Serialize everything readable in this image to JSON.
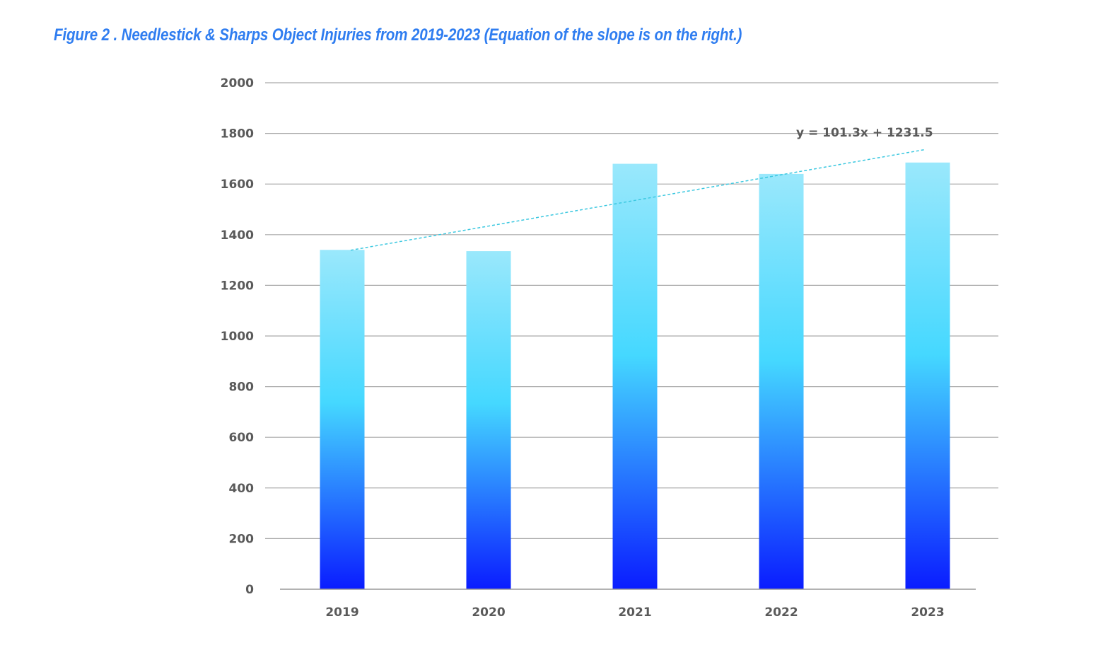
{
  "title": "Figure 2 . Needlestick & Sharps Object Injuries from 2019-2023 (Equation of the slope is on the right.)",
  "chart_data": {
    "type": "bar",
    "title": "Figure 2 . Needlestick & Sharps Object Injuries from 2019-2023 (Equation of the slope is on the right.)",
    "categories": [
      "2019",
      "2020",
      "2021",
      "2022",
      "2023"
    ],
    "values": [
      1340,
      1335,
      1680,
      1640,
      1685
    ],
    "xlabel": "",
    "ylabel": "",
    "ylim": [
      0,
      2000
    ],
    "yticks": [
      0,
      200,
      400,
      600,
      800,
      1000,
      1200,
      1400,
      1600,
      1800,
      2000
    ],
    "grid": true,
    "legend": "none",
    "trendline": {
      "type": "linear",
      "slope": 101.3,
      "intercept": 1231.5,
      "equation": "y = 101.3x + 1231.5",
      "color": "#3cc8e0"
    },
    "colors": {
      "bar_top": "#9ae8fc",
      "bar_mid": "#45d8ff",
      "bar_bottom": "#0a1cff",
      "title": "#2f7df0",
      "gridline": "#aaaaaa",
      "tick_label": "#5a5a5a"
    }
  }
}
